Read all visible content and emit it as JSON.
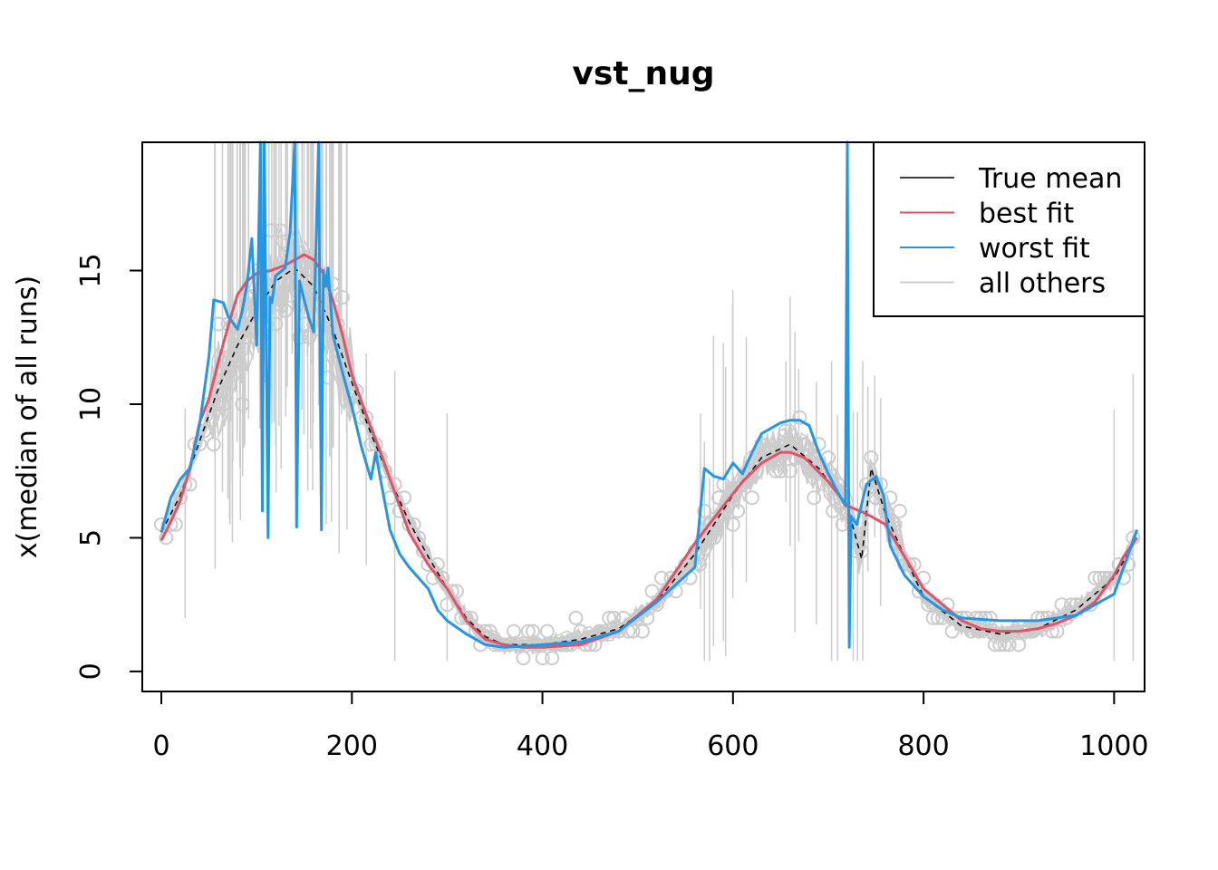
{
  "chart_data": {
    "type": "line",
    "title": "vst_nug",
    "xlabel": "",
    "ylabel": "x(median of all runs)",
    "xlim": [
      -20,
      1032
    ],
    "ylim": [
      -0.75,
      19.8
    ],
    "xticks": [
      0,
      200,
      400,
      600,
      800,
      1000
    ],
    "yticks": [
      0,
      5,
      10,
      15
    ],
    "legend_position": "top-right",
    "legend": [
      {
        "label": "True mean",
        "color": "#000000"
      },
      {
        "label": "best fit",
        "color": "#DF536B"
      },
      {
        "label": "worst fit",
        "color": "#2297E6"
      },
      {
        "label": "all others",
        "color": "#CCCCCC"
      }
    ],
    "series": [
      {
        "name": "True mean",
        "color": "#000000",
        "dashed": true,
        "x": [
          0,
          20,
          40,
          60,
          80,
          100,
          120,
          140,
          160,
          180,
          200,
          220,
          240,
          260,
          280,
          300,
          320,
          340,
          360,
          400,
          440,
          480,
          520,
          560,
          600,
          630,
          660,
          690,
          720,
          735,
          745,
          760,
          780,
          800,
          840,
          880,
          920,
          960,
          1000,
          1024
        ],
        "y": [
          5.2,
          6.6,
          8.6,
          10.6,
          12.2,
          13.5,
          14.6,
          15.1,
          14.4,
          12.8,
          10.8,
          8.9,
          7.2,
          5.6,
          4.3,
          3.1,
          2.0,
          1.3,
          1.0,
          1.0,
          1.2,
          1.6,
          2.6,
          4.4,
          6.6,
          8.0,
          8.5,
          7.6,
          6.2,
          4.2,
          7.6,
          5.9,
          4.3,
          2.8,
          1.7,
          1.4,
          1.6,
          2.3,
          3.5,
          5.0
        ]
      },
      {
        "name": "best fit",
        "color": "#DF536B",
        "x": [
          0,
          10,
          20,
          30,
          40,
          50,
          60,
          70,
          80,
          90,
          100,
          115,
          130,
          140,
          150,
          160,
          170,
          180,
          190,
          200,
          215,
          230,
          245,
          260,
          280,
          300,
          320,
          340,
          360,
          380,
          400,
          440,
          480,
          520,
          560,
          590,
          610,
          630,
          650,
          660,
          675,
          700,
          720,
          740,
          760,
          780,
          800,
          820,
          840,
          860,
          880,
          900,
          920,
          940,
          960,
          980,
          1000,
          1010,
          1024
        ],
        "y": [
          4.9,
          5.6,
          6.4,
          7.6,
          9.3,
          10.2,
          11.6,
          12.9,
          14.1,
          14.6,
          14.9,
          15.0,
          15.2,
          15.4,
          15.6,
          15.4,
          14.9,
          13.9,
          12.6,
          11.1,
          9.6,
          8.2,
          6.7,
          5.2,
          4.0,
          3.1,
          1.9,
          1.2,
          1.0,
          0.9,
          0.9,
          1.0,
          1.5,
          2.7,
          4.8,
          6.2,
          7.1,
          7.8,
          8.2,
          8.2,
          8.0,
          7.1,
          6.2,
          5.9,
          5.5,
          4.3,
          3.1,
          2.5,
          1.9,
          1.6,
          1.5,
          1.5,
          1.6,
          1.8,
          2.1,
          2.6,
          3.6,
          4.3,
          5.0
        ]
      },
      {
        "name": "worst fit",
        "color": "#2297E6",
        "x": [
          0,
          10,
          20,
          30,
          40,
          50,
          55,
          65,
          70,
          80,
          85,
          90,
          95,
          100,
          104,
          106,
          108,
          110,
          112,
          114,
          116,
          120,
          130,
          135,
          140,
          142,
          145,
          150,
          155,
          160,
          165,
          168,
          170,
          172,
          175,
          180,
          190,
          200,
          210,
          220,
          225,
          230,
          240,
          250,
          260,
          280,
          290,
          300,
          320,
          340,
          360,
          400,
          440,
          480,
          520,
          560,
          570,
          580,
          590,
          600,
          610,
          620,
          630,
          640,
          650,
          660,
          670,
          680,
          690,
          700,
          710,
          718,
          720,
          722,
          724,
          730,
          740,
          750,
          758,
          765,
          780,
          800,
          820,
          840,
          880,
          920,
          960,
          1000,
          1024
        ],
        "y": [
          5.2,
          6.5,
          7.2,
          7.6,
          9.2,
          11.8,
          13.9,
          13.8,
          13.3,
          12.8,
          13.5,
          14.5,
          16.2,
          12.2,
          19.8,
          6.0,
          19.8,
          13.0,
          5.0,
          14.0,
          13.8,
          14.8,
          15.1,
          16.4,
          19.8,
          5.4,
          14.6,
          13.9,
          13.2,
          12.7,
          19.8,
          5.3,
          15.0,
          14.4,
          15.1,
          12.6,
          11.2,
          9.9,
          8.4,
          7.2,
          8.2,
          7.2,
          5.3,
          4.4,
          3.9,
          3.1,
          2.3,
          1.9,
          1.4,
          1.0,
          0.9,
          1.0,
          1.1,
          1.5,
          2.6,
          3.9,
          7.6,
          7.3,
          7.2,
          7.8,
          7.4,
          8.2,
          8.9,
          9.1,
          9.3,
          9.4,
          9.4,
          9.2,
          8.2,
          7.4,
          6.7,
          6.2,
          19.8,
          0.9,
          5.8,
          5.5,
          7.0,
          7.3,
          6.6,
          4.7,
          3.6,
          2.8,
          2.3,
          2.0,
          1.9,
          1.9,
          2.1,
          2.9,
          5.3
        ]
      }
    ]
  }
}
